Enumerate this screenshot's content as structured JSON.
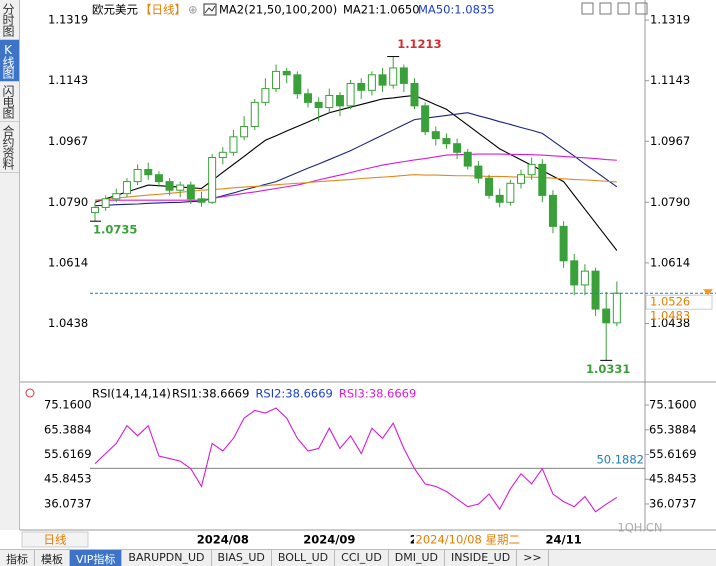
{
  "sidebar": {
    "tabs": [
      "分时图",
      "K线图",
      "闪电图",
      "合约资料"
    ]
  },
  "chart_data": [
    {
      "type": "candlestick",
      "title": "欧元美元",
      "period": "【日线】",
      "indicator": "MA2(21,50,100,200)",
      "color": "#3aa13a",
      "categories": [
        null,
        null,
        null,
        null,
        null,
        null,
        null,
        null,
        null,
        null,
        null,
        null,
        "2024/08",
        null,
        null,
        null,
        null,
        null,
        null,
        null,
        null,
        null,
        "2024/09",
        null,
        null,
        null,
        null,
        null,
        null,
        null,
        null,
        null,
        "2024/10",
        null,
        null,
        null,
        null,
        null,
        null,
        null,
        null,
        null,
        null,
        null,
        "24/11",
        null,
        null,
        null,
        null,
        null
      ],
      "open": [
        1.076,
        1.0775,
        1.08,
        1.0815,
        1.085,
        1.0885,
        1.087,
        1.085,
        1.0825,
        1.084,
        1.08,
        1.079,
        1.092,
        1.0935,
        1.098,
        1.101,
        1.108,
        1.112,
        1.117,
        1.116,
        1.1105,
        1.108,
        1.1065,
        1.11,
        1.107,
        1.1135,
        1.1115,
        1.116,
        1.113,
        1.118,
        1.1135,
        1.107,
        1.0995,
        1.0975,
        1.096,
        1.0935,
        1.0895,
        1.086,
        1.081,
        1.079,
        1.0845,
        1.087,
        1.09,
        1.081,
        1.072,
        1.062,
        1.055,
        1.059,
        1.048,
        1.044
      ],
      "high": [
        1.079,
        1.081,
        1.083,
        1.086,
        1.09,
        1.0905,
        1.088,
        1.086,
        1.085,
        1.085,
        1.082,
        1.093,
        1.095,
        1.1,
        1.104,
        1.109,
        1.115,
        1.119,
        1.118,
        1.117,
        1.112,
        1.1095,
        1.112,
        1.111,
        1.1145,
        1.115,
        1.117,
        1.118,
        1.1213,
        1.119,
        1.115,
        1.108,
        1.101,
        1.099,
        1.0975,
        1.0945,
        1.091,
        1.087,
        1.083,
        1.0855,
        1.0885,
        1.092,
        1.0915,
        1.0825,
        1.0735,
        1.064,
        1.061,
        1.06,
        1.053,
        1.056
      ],
      "low": [
        1.0735,
        1.0765,
        1.079,
        1.0805,
        1.084,
        1.0855,
        1.0835,
        1.081,
        1.0805,
        1.0785,
        1.0777,
        1.0785,
        1.09,
        1.0925,
        1.097,
        1.1,
        1.107,
        1.111,
        1.1135,
        1.109,
        1.1065,
        1.1025,
        1.105,
        1.104,
        1.106,
        1.109,
        1.11,
        1.111,
        1.112,
        1.111,
        1.106,
        1.0985,
        1.0955,
        1.0945,
        1.0915,
        1.0885,
        1.0845,
        1.08,
        1.0775,
        1.078,
        1.083,
        1.0855,
        1.079,
        1.07,
        1.06,
        1.052,
        1.052,
        1.046,
        1.0331,
        1.043
      ],
      "close": [
        1.0775,
        1.08,
        1.0815,
        1.085,
        1.0885,
        1.087,
        1.085,
        1.0825,
        1.084,
        1.08,
        1.079,
        1.092,
        1.0935,
        1.098,
        1.101,
        1.108,
        1.112,
        1.117,
        1.116,
        1.1105,
        1.108,
        1.1065,
        1.11,
        1.107,
        1.1135,
        1.1115,
        1.116,
        1.113,
        1.118,
        1.1135,
        1.107,
        1.0995,
        1.0975,
        1.096,
        1.0935,
        1.0895,
        1.086,
        1.081,
        1.079,
        1.0845,
        1.087,
        1.09,
        1.081,
        1.072,
        1.062,
        1.055,
        1.059,
        1.048,
        1.044,
        1.0526
      ],
      "series": [
        {
          "name": "MA21:1.0650",
          "color": "#000000",
          "values": [
            1.079,
            1.08,
            1.081,
            1.082,
            1.083,
            1.084,
            1.0838,
            1.0836,
            1.0834,
            1.0832,
            1.083,
            1.0853,
            1.0877,
            1.09,
            1.0923,
            1.0947,
            1.097,
            1.0983,
            1.0997,
            1.101,
            1.1023,
            1.1037,
            1.105,
            1.1058,
            1.1066,
            1.1074,
            1.1082,
            1.109,
            1.1093,
            1.1097,
            1.11,
            1.1087,
            1.1073,
            1.106,
            1.1037,
            1.1014,
            1.0991,
            1.0968,
            1.0945,
            1.0929,
            1.0913,
            1.0897,
            1.0882,
            1.0866,
            1.085,
            1.081,
            1.077,
            1.073,
            1.069,
            1.065
          ]
        },
        {
          "name": "MA50:1.0835",
          "color": "#1a237e",
          "values": [
            1.078,
            1.0781,
            1.0783,
            1.0784,
            1.0785,
            1.0787,
            1.0788,
            1.0789,
            1.079,
            1.0792,
            1.0793,
            1.0801,
            1.0809,
            1.0817,
            1.0826,
            1.0834,
            1.0842,
            1.085,
            1.0863,
            1.0876,
            1.0889,
            1.0901,
            1.0914,
            1.0927,
            1.094,
            1.0955,
            1.097,
            1.0985,
            1.1,
            1.1015,
            1.103,
            1.1034,
            1.1038,
            1.1042,
            1.1046,
            1.105,
            1.1041,
            1.1033,
            1.1024,
            1.1016,
            1.1007,
            1.0999,
            1.099,
            1.0968,
            1.0946,
            1.0924,
            1.0901,
            1.0879,
            1.0857,
            1.0835
          ]
        },
        {
          "color": "#d81bd8",
          "values": [
            1.0796,
            1.0796,
            1.0796,
            1.0796,
            1.0796,
            1.0796,
            1.0796,
            1.0796,
            1.0796,
            1.0796,
            1.0796,
            1.0801,
            1.0806,
            1.0811,
            1.0816,
            1.082,
            1.0825,
            1.083,
            1.0835,
            1.084,
            1.0847,
            1.0855,
            1.0862,
            1.0869,
            1.0876,
            1.0884,
            1.0891,
            1.0898,
            1.0903,
            1.0908,
            1.0913,
            1.0917,
            1.0922,
            1.0927,
            1.0928,
            1.0929,
            1.093,
            1.093,
            1.093,
            1.0929,
            1.0929,
            1.0928,
            1.0927,
            1.0925,
            1.0923,
            1.0921,
            1.0919,
            1.0917,
            1.0914,
            1.0912
          ]
        },
        {
          "color": "#e08a1e",
          "values": [
            1.0796,
            1.0799,
            1.0802,
            1.0805,
            1.0808,
            1.0811,
            1.0813,
            1.0816,
            1.0819,
            1.0822,
            1.0825,
            1.0827,
            1.0829,
            1.0832,
            1.0834,
            1.0836,
            1.0838,
            1.0841,
            1.0843,
            1.0845,
            1.0847,
            1.085,
            1.0852,
            1.0854,
            1.0856,
            1.0859,
            1.0861,
            1.0863,
            1.0865,
            1.0868,
            1.087,
            1.0869,
            1.0869,
            1.0868,
            1.0867,
            1.0867,
            1.0866,
            1.0865,
            1.0865,
            1.0864,
            1.0863,
            1.0863,
            1.0862,
            1.086,
            1.0858,
            1.0856,
            1.0855,
            1.0853,
            1.0851,
            1.0849
          ]
        }
      ],
      "ylim": [
        1.0274,
        1.1354
      ],
      "yticks": [
        1.1319,
        1.1143,
        1.0967,
        {
          "value": 1.079,
          "label": "1.0790"
        },
        1.0614,
        1.0438
      ],
      "high_label": "1.1213",
      "low_label": "1.0331",
      "start_label": "1.0735",
      "last_price": 1.0526,
      "second_price": 1.0483,
      "crosshair_label": "2024/10/08 星期二"
    },
    {
      "type": "line",
      "title": "RSI(14,14,14)",
      "legend": [
        {
          "text": "RSI1:38.6669",
          "color": "#000000"
        },
        {
          "text": "RSI2:38.6669",
          "color": "#1a3fd0"
        },
        {
          "text": "RSI3:38.6669",
          "color": "#d81bd8"
        }
      ],
      "color": "#d81bd8",
      "values": [
        52,
        56,
        60,
        67,
        63,
        67,
        55,
        54,
        53,
        50,
        43,
        60,
        57,
        62,
        70,
        73,
        72,
        74,
        70,
        62,
        57,
        58,
        66,
        58,
        63,
        56,
        66,
        62,
        68,
        58,
        50,
        44,
        43,
        41,
        38,
        35,
        36,
        40,
        34,
        42,
        48,
        44,
        50,
        40,
        37,
        35,
        39,
        33,
        36,
        38.6669
      ],
      "ylim": [
        25.79,
        81.1
      ],
      "yticks": [
        {
          "value": 75.16,
          "label": "75.1600"
        },
        65.3884,
        55.6169,
        45.8453,
        36.0737
      ],
      "reference": 50.1882
    }
  ],
  "period_button": "日线",
  "toolbar": [
    "指标",
    "模板",
    "VIP指标",
    "BARUPDN_UD",
    "BIAS_UD",
    "BOLL_UD",
    "CCI_UD",
    "DMI_UD",
    "INSIDE_UD",
    ">>"
  ],
  "watermark": "1QH.CN"
}
